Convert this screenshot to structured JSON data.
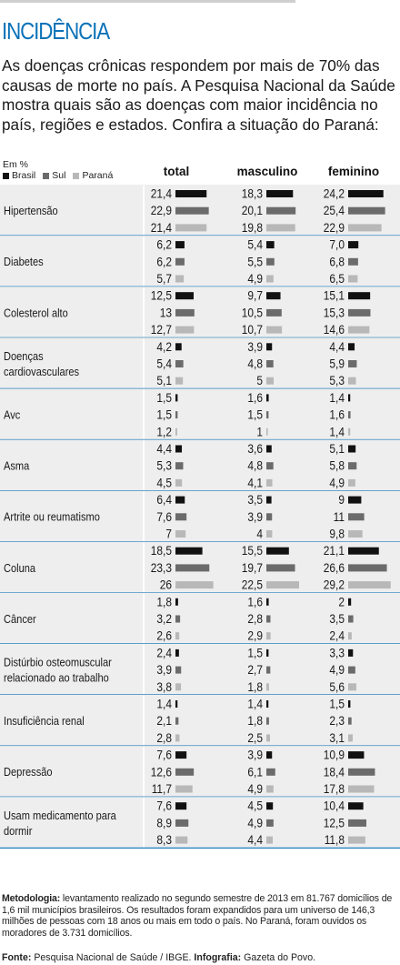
{
  "header": {
    "title": "INCIDÊNCIA",
    "intro": "As doenças crônicas respondem por mais de 70% das causas de morte no país. A Pesquisa Nacional da Saúde mostra quais são as doenças com maior incidência no país, regiões e estados. Confira a situação do Paraná:"
  },
  "legend": {
    "unit": "Em %",
    "items": [
      {
        "label": "Brasil",
        "color": "#111111"
      },
      {
        "label": "Sul",
        "color": "#6b6b6b"
      },
      {
        "label": "Paraná",
        "color": "#b8b8b8"
      }
    ]
  },
  "colors": {
    "title": "#0b72b8",
    "band": "#eeeeee",
    "divider": "#0b72b8"
  },
  "chart_data": {
    "type": "bar",
    "columns": [
      "total",
      "masculino",
      "feminino"
    ],
    "series": [
      "Brasil",
      "Sul",
      "Paraná"
    ],
    "categories": [
      {
        "name": "Hipertensão",
        "values": [
          [
            "21,4",
            "18,3",
            "24,2"
          ],
          [
            "22,9",
            "20,1",
            "25,4"
          ],
          [
            "21,4",
            "19,8",
            "22,9"
          ]
        ]
      },
      {
        "name": "Diabetes",
        "values": [
          [
            "6,2",
            "5,4",
            "7,0"
          ],
          [
            "6,2",
            "5,5",
            "6,8"
          ],
          [
            "5,7",
            "4,9",
            "6,5"
          ]
        ]
      },
      {
        "name": "Colesterol alto",
        "values": [
          [
            "12,5",
            "9,7",
            "15,1"
          ],
          [
            "13",
            "10,5",
            "15,3"
          ],
          [
            "12,7",
            "10,7",
            "14,6"
          ]
        ]
      },
      {
        "name": "Doenças cardiovasculares",
        "values": [
          [
            "4,2",
            "3,9",
            "4,4"
          ],
          [
            "5,4",
            "4,8",
            "5,9"
          ],
          [
            "5,1",
            "5",
            "5,3"
          ]
        ]
      },
      {
        "name": "Avc",
        "values": [
          [
            "1,5",
            "1,6",
            "1,4"
          ],
          [
            "1,5",
            "1,5",
            "1,6"
          ],
          [
            "1,2",
            "1",
            "1,4"
          ]
        ]
      },
      {
        "name": "Asma",
        "values": [
          [
            "4,4",
            "3,6",
            "5,1"
          ],
          [
            "5,3",
            "4,8",
            "5,8"
          ],
          [
            "4,5",
            "4,1",
            "4,9"
          ]
        ]
      },
      {
        "name": "Artrite ou reumatismo",
        "values": [
          [
            "6,4",
            "3,5",
            "9"
          ],
          [
            "7,6",
            "3,9",
            "11"
          ],
          [
            "7",
            "4",
            "9,8"
          ]
        ]
      },
      {
        "name": "Coluna",
        "values": [
          [
            "18,5",
            "15,5",
            "21,1"
          ],
          [
            "23,3",
            "19,7",
            "26,6"
          ],
          [
            "26",
            "22,5",
            "29,2"
          ]
        ]
      },
      {
        "name": "Câncer",
        "values": [
          [
            "1,8",
            "1,6",
            "2"
          ],
          [
            "3,2",
            "2,8",
            "3,5"
          ],
          [
            "2,6",
            "2,9",
            "2,4"
          ]
        ]
      },
      {
        "name": "Distúrbio osteomuscular relacionado ao trabalho",
        "values": [
          [
            "2,4",
            "1,5",
            "3,3"
          ],
          [
            "3,9",
            "2,7",
            "4,9"
          ],
          [
            "3,8",
            "1,8",
            "5,6"
          ]
        ]
      },
      {
        "name": "Insuficiência renal",
        "values": [
          [
            "1,4",
            "1,4",
            "1,5"
          ],
          [
            "2,1",
            "1,8",
            "2,3"
          ],
          [
            "2,8",
            "2,5",
            "3,1"
          ]
        ]
      },
      {
        "name": "Depressão",
        "values": [
          [
            "7,6",
            "3,9",
            "10,9"
          ],
          [
            "12,6",
            "6,1",
            "18,4"
          ],
          [
            "11,7",
            "4,9",
            "17,8"
          ]
        ]
      },
      {
        "name": "Usam medicamento para dormir",
        "values": [
          [
            "7,6",
            "4,5",
            "10,4"
          ],
          [
            "8,9",
            "4,9",
            "12,5"
          ],
          [
            "8,3",
            "4,4",
            "11,8"
          ]
        ]
      }
    ]
  },
  "footer": {
    "method_label": "Metodologia:",
    "method_text": " levantamento realizado no segundo semestre de 2013 em 81.767 domicílios de 1,6 mil municípios brasileiros. Os resultados foram expandidos para um universo de 146,3 milhões de pessoas com 18 anos ou mais em todo o país. No Paraná, foram ouvidos os moradores de 3.731 domicílios.",
    "source_label": "Fonte:",
    "source_text": " Pesquisa Nacional de Saúde / IBGE. ",
    "credit_label": "Infografia:",
    "credit_text": " Gazeta do Povo."
  }
}
